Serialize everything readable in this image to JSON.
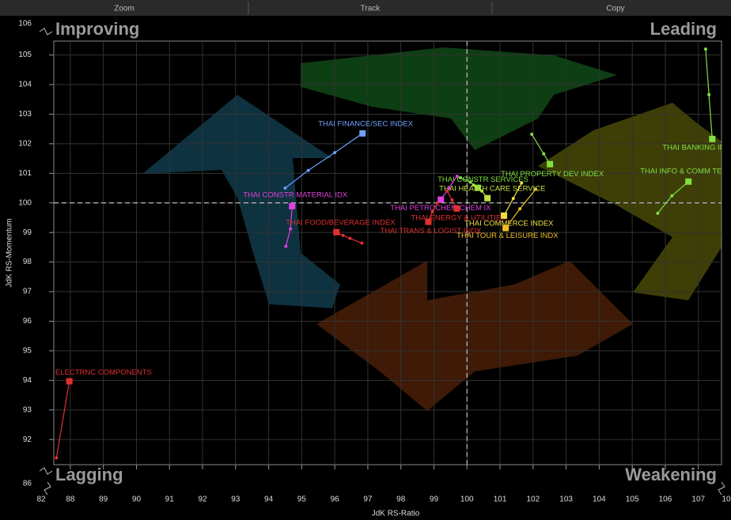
{
  "menu": [
    "Zoom",
    "Track",
    "Copy"
  ],
  "chart_data": {
    "type": "rrg",
    "x_label": "JdK RS-Ratio",
    "y_label": "JdK RS-Momentum",
    "quadrant_labels": {
      "top_left": "Improving",
      "top_right": "Leading",
      "bottom_left": "Lagging",
      "bottom_right": "Weakening"
    },
    "xlim": [
      87.5,
      107.7
    ],
    "ylim": [
      91.15,
      105.47
    ],
    "xticks": [
      88,
      89,
      90,
      91,
      92,
      93,
      94,
      95,
      96,
      97,
      98,
      99,
      100,
      101,
      102,
      103,
      104,
      105,
      106,
      107
    ],
    "yticks": [
      92,
      93,
      94,
      95,
      96,
      97,
      98,
      99,
      100,
      101,
      102,
      103,
      104,
      105
    ],
    "x_break_labels": [
      "82",
      "10"
    ],
    "y_break_labels": [
      "106",
      "86"
    ],
    "reference_x": 100,
    "reference_y": 100,
    "grid": true,
    "series": [
      {
        "name": "THAI FINANCE/SEC INDEX",
        "color": "#6fa0ff",
        "x": [
          94.5,
          95.2,
          96.0,
          96.84
        ],
        "y": [
          100.5,
          101.1,
          101.7,
          102.35
        ]
      },
      {
        "name": "THAI CONSTR MATERIAL IDX",
        "color": "#e040e0",
        "x": [
          94.52,
          94.66,
          94.71
        ],
        "y": [
          98.53,
          99.12,
          99.89
        ]
      },
      {
        "name": "THAI FOOD/BEVERAGE INDEX",
        "color": "#e03030",
        "x": [
          96.82,
          96.46,
          96.25,
          96.05
        ],
        "y": [
          98.64,
          98.8,
          98.9,
          99.01
        ]
      },
      {
        "name": "THAI ELECTRNC COMPONENTS",
        "color": "#e03030",
        "x": [
          87.58,
          87.97
        ],
        "y": [
          91.38,
          93.97
        ]
      },
      {
        "name": "THAI BANKING INDEX",
        "color": "#80e040",
        "x": [
          107.22,
          107.32,
          107.42
        ],
        "y": [
          105.2,
          103.66,
          102.16
        ]
      },
      {
        "name": "THAI INFO & COMM TECH INDEX",
        "color": "#80e040",
        "x": [
          105.77,
          106.2,
          106.7
        ],
        "y": [
          99.65,
          100.24,
          100.72
        ]
      },
      {
        "name": "THAI PROPERTY DEV INDEX",
        "color": "#80e040",
        "x": [
          101.96,
          102.32,
          102.51
        ],
        "y": [
          102.32,
          101.66,
          101.31
        ]
      },
      {
        "name": "THAI CONSTR SERVICES",
        "color": "#80e040",
        "x": [
          99.8,
          100.1,
          100.33
        ],
        "y": [
          100.85,
          100.7,
          100.51
        ]
      },
      {
        "name": "THAI HEALTH CARE SERVICE",
        "color": "#c0e040",
        "x": [
          100.2,
          100.45,
          100.62
        ],
        "y": [
          100.6,
          100.4,
          100.16
        ]
      },
      {
        "name": "THAI PETROCHEM CHEM IX",
        "color": "#e040e0",
        "x": [
          99.7,
          99.45,
          99.21
        ],
        "y": [
          100.9,
          100.5,
          100.11
        ]
      },
      {
        "name": "THAI ENERGY & UTILITIES",
        "color": "#e03030",
        "x": [
          99.4,
          99.55,
          99.69
        ],
        "y": [
          100.4,
          100.1,
          99.81
        ]
      },
      {
        "name": "THAI TRANS & LOGIST INDX",
        "color": "#e03030",
        "x": [
          99.1,
          98.95,
          98.83
        ],
        "y": [
          100.0,
          99.7,
          99.36
        ]
      },
      {
        "name": "THAI COMMERCE INDEX",
        "color": "#f0e040",
        "x": [
          101.65,
          101.4,
          101.12
        ],
        "y": [
          100.67,
          100.15,
          99.57
        ]
      },
      {
        "name": "THAI TOUR & LEISURE INDX",
        "color": "#f0c020",
        "x": [
          102.08,
          101.6,
          101.17
        ],
        "y": [
          100.46,
          99.8,
          99.15
        ]
      }
    ]
  }
}
